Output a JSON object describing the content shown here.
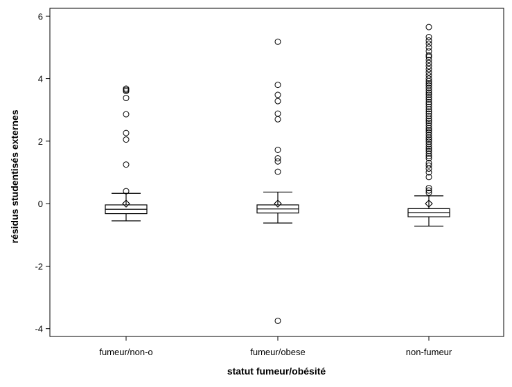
{
  "chart_data": {
    "type": "box",
    "xlabel": "statut fumeur/obésité",
    "ylabel": "résidus studentisés externes",
    "categories": [
      "fumeur/non-o",
      "fumeur/obese",
      "non-fumeur"
    ],
    "ylim": [
      -4.25,
      6.25
    ],
    "yticks": [
      -4,
      -2,
      0,
      2,
      4,
      6
    ],
    "ytick_labels": [
      "-4",
      "-2",
      "0",
      "2",
      "4",
      "6"
    ],
    "grid": false,
    "boxes": [
      {
        "category": "fumeur/non-o",
        "whisker_low": -0.55,
        "q1": -0.32,
        "median": -0.18,
        "q3": -0.04,
        "whisker_high": 0.33,
        "mean": 0.0,
        "outliers": [
          3.68,
          3.64,
          3.6,
          3.38,
          2.86,
          2.26,
          2.05,
          1.25,
          0.4
        ]
      },
      {
        "category": "fumeur/obese",
        "whisker_low": -0.62,
        "q1": -0.3,
        "median": -0.17,
        "q3": -0.04,
        "whisker_high": 0.37,
        "mean": 0.0,
        "outliers": [
          5.18,
          3.8,
          3.48,
          3.28,
          2.88,
          2.7,
          1.72,
          1.45,
          1.35,
          1.02,
          -3.75
        ]
      },
      {
        "category": "non-fumeur",
        "whisker_low": -0.72,
        "q1": -0.42,
        "median": -0.29,
        "q3": -0.16,
        "whisker_high": 0.25,
        "mean": 0.0,
        "outliers": [
          5.65,
          5.33,
          5.22,
          5.12,
          5.0,
          4.88,
          4.75,
          4.7,
          4.6,
          4.5,
          4.4,
          4.3,
          4.2,
          4.1,
          4.0,
          3.92,
          3.85,
          3.78,
          3.7,
          3.62,
          3.55,
          3.48,
          3.4,
          3.33,
          3.25,
          3.18,
          3.1,
          3.02,
          2.95,
          2.88,
          2.8,
          2.72,
          2.65,
          2.58,
          2.5,
          2.42,
          2.35,
          2.28,
          2.2,
          2.12,
          2.05,
          1.98,
          1.9,
          1.82,
          1.75,
          1.68,
          1.6,
          1.52,
          1.45,
          1.3,
          1.22,
          1.12,
          1.0,
          0.85,
          0.5,
          0.42,
          0.35
        ]
      }
    ]
  }
}
